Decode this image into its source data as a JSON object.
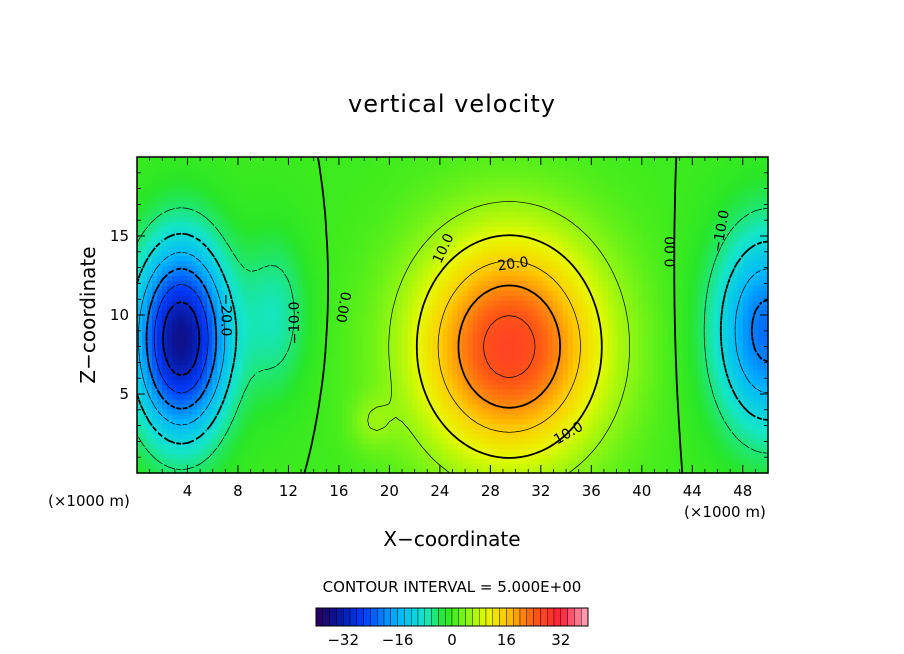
{
  "chart_data": {
    "type": "heatmap",
    "title": "vertical velocity",
    "xlabel": "X−coordinate",
    "ylabel": "Z−coordinate",
    "x_unit": "(×1000 m)",
    "x_unit_right": "(×1000 m)",
    "xlim": [
      0,
      50
    ],
    "ylim": [
      0,
      20
    ],
    "x_ticks": [
      "4",
      "8",
      "12",
      "16",
      "20",
      "24",
      "28",
      "32",
      "36",
      "40",
      "44",
      "48"
    ],
    "x_tick_values": [
      4,
      8,
      12,
      16,
      20,
      24,
      28,
      32,
      36,
      40,
      44,
      48
    ],
    "y_ticks": [
      "5",
      "10",
      "15"
    ],
    "y_tick_values": [
      5,
      10,
      15
    ],
    "contour_interval_label": "CONTOUR INTERVAL = 5.000E+00",
    "contour_interval": 5,
    "contour_labels": [
      {
        "text": "10.0",
        "x": 24.3,
        "z": 14.2,
        "angle": -65
      },
      {
        "text": "20.0",
        "x": 29.8,
        "z": 13.2,
        "angle": -8
      },
      {
        "text": "10.0",
        "x": 34.2,
        "z": 2.5,
        "angle": -30
      },
      {
        "text": "0.00",
        "x": 42.3,
        "z": 14.0,
        "angle": -90
      },
      {
        "text": "−10.0",
        "x": 46.3,
        "z": 15.3,
        "angle": -80
      },
      {
        "text": "−20.0",
        "x": 7.0,
        "z": 10.0,
        "angle": 90
      },
      {
        "text": "−10.0",
        "x": 12.5,
        "z": 9.5,
        "angle": -90
      },
      {
        "text": "0.00",
        "x": 16.3,
        "z": 10.5,
        "angle": 100
      }
    ],
    "field_features": [
      {
        "kind": "updraft-max",
        "x": 29.5,
        "z": 8.0,
        "value": 27
      },
      {
        "kind": "downdraft-min",
        "x": 3.5,
        "z": 8.5,
        "value": -35
      },
      {
        "kind": "downdraft-min",
        "x": 50.0,
        "z": 9.0,
        "value": -22
      }
    ],
    "colorbar": {
      "min": -40,
      "max": 40,
      "tick_labels": [
        "−32",
        "−16",
        "0",
        "16",
        "32"
      ],
      "tick_values": [
        -32,
        -16,
        0,
        16,
        32
      ]
    }
  }
}
